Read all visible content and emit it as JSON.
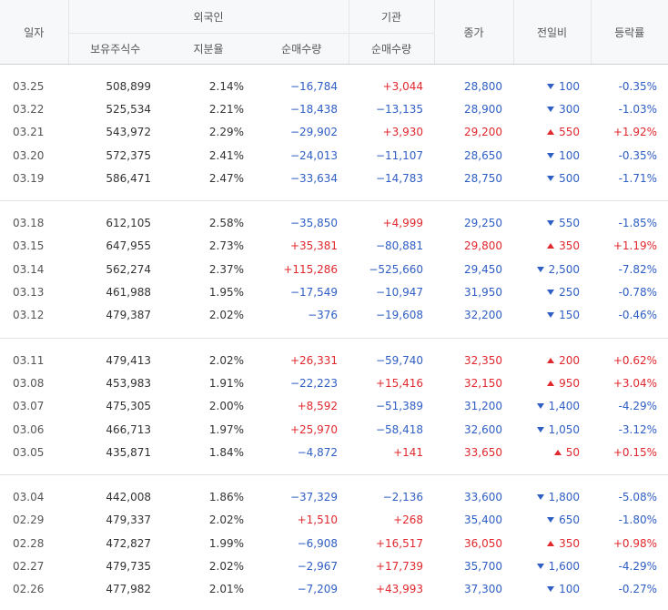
{
  "header": {
    "date": "일자",
    "foreign": "외국인",
    "institution": "기관",
    "close": "종가",
    "change": "전일비",
    "rate": "등락률",
    "holdings": "보유주식수",
    "ratio": "지분율",
    "foreign_net": "순매수량",
    "inst_net": "순매수량"
  },
  "colors": {
    "up": "#e0282e",
    "down": "#2f5ec4"
  },
  "groups": [
    [
      {
        "date": "03.25",
        "holdings": "508,899",
        "ratio": "2.14%",
        "foreign_net": "−16,784",
        "inst_net": "+3,044",
        "close": "28,800",
        "dir": "down",
        "change": "100",
        "rate": "-0.35%"
      },
      {
        "date": "03.22",
        "holdings": "525,534",
        "ratio": "2.21%",
        "foreign_net": "−18,438",
        "inst_net": "−13,135",
        "close": "28,900",
        "dir": "down",
        "change": "300",
        "rate": "-1.03%"
      },
      {
        "date": "03.21",
        "holdings": "543,972",
        "ratio": "2.29%",
        "foreign_net": "−29,902",
        "inst_net": "+3,930",
        "close": "29,200",
        "dir": "up",
        "change": "550",
        "rate": "+1.92%"
      },
      {
        "date": "03.20",
        "holdings": "572,375",
        "ratio": "2.41%",
        "foreign_net": "−24,013",
        "inst_net": "−11,107",
        "close": "28,650",
        "dir": "down",
        "change": "100",
        "rate": "-0.35%"
      },
      {
        "date": "03.19",
        "holdings": "586,471",
        "ratio": "2.47%",
        "foreign_net": "−33,634",
        "inst_net": "−14,783",
        "close": "28,750",
        "dir": "down",
        "change": "500",
        "rate": "-1.71%"
      }
    ],
    [
      {
        "date": "03.18",
        "holdings": "612,105",
        "ratio": "2.58%",
        "foreign_net": "−35,850",
        "inst_net": "+4,999",
        "close": "29,250",
        "dir": "down",
        "change": "550",
        "rate": "-1.85%"
      },
      {
        "date": "03.15",
        "holdings": "647,955",
        "ratio": "2.73%",
        "foreign_net": "+35,381",
        "inst_net": "−80,881",
        "close": "29,800",
        "dir": "up",
        "change": "350",
        "rate": "+1.19%"
      },
      {
        "date": "03.14",
        "holdings": "562,274",
        "ratio": "2.37%",
        "foreign_net": "+115,286",
        "inst_net": "−525,660",
        "close": "29,450",
        "dir": "down",
        "change": "2,500",
        "rate": "-7.82%"
      },
      {
        "date": "03.13",
        "holdings": "461,988",
        "ratio": "1.95%",
        "foreign_net": "−17,549",
        "inst_net": "−10,947",
        "close": "31,950",
        "dir": "down",
        "change": "250",
        "rate": "-0.78%"
      },
      {
        "date": "03.12",
        "holdings": "479,387",
        "ratio": "2.02%",
        "foreign_net": "−376",
        "inst_net": "−19,608",
        "close": "32,200",
        "dir": "down",
        "change": "150",
        "rate": "-0.46%"
      }
    ],
    [
      {
        "date": "03.11",
        "holdings": "479,413",
        "ratio": "2.02%",
        "foreign_net": "+26,331",
        "inst_net": "−59,740",
        "close": "32,350",
        "dir": "up",
        "change": "200",
        "rate": "+0.62%"
      },
      {
        "date": "03.08",
        "holdings": "453,983",
        "ratio": "1.91%",
        "foreign_net": "−22,223",
        "inst_net": "+15,416",
        "close": "32,150",
        "dir": "up",
        "change": "950",
        "rate": "+3.04%"
      },
      {
        "date": "03.07",
        "holdings": "475,305",
        "ratio": "2.00%",
        "foreign_net": "+8,592",
        "inst_net": "−51,389",
        "close": "31,200",
        "dir": "down",
        "change": "1,400",
        "rate": "-4.29%"
      },
      {
        "date": "03.06",
        "holdings": "466,713",
        "ratio": "1.97%",
        "foreign_net": "+25,970",
        "inst_net": "−58,418",
        "close": "32,600",
        "dir": "down",
        "change": "1,050",
        "rate": "-3.12%"
      },
      {
        "date": "03.05",
        "holdings": "435,871",
        "ratio": "1.84%",
        "foreign_net": "−4,872",
        "inst_net": "+141",
        "close": "33,650",
        "dir": "up",
        "change": "50",
        "rate": "+0.15%"
      }
    ],
    [
      {
        "date": "03.04",
        "holdings": "442,008",
        "ratio": "1.86%",
        "foreign_net": "−37,329",
        "inst_net": "−2,136",
        "close": "33,600",
        "dir": "down",
        "change": "1,800",
        "rate": "-5.08%"
      },
      {
        "date": "02.29",
        "holdings": "479,337",
        "ratio": "2.02%",
        "foreign_net": "+1,510",
        "inst_net": "+268",
        "close": "35,400",
        "dir": "down",
        "change": "650",
        "rate": "-1.80%"
      },
      {
        "date": "02.28",
        "holdings": "472,827",
        "ratio": "1.99%",
        "foreign_net": "−6,908",
        "inst_net": "+16,517",
        "close": "36,050",
        "dir": "up",
        "change": "350",
        "rate": "+0.98%"
      },
      {
        "date": "02.27",
        "holdings": "479,735",
        "ratio": "2.02%",
        "foreign_net": "−2,967",
        "inst_net": "+17,739",
        "close": "35,700",
        "dir": "down",
        "change": "1,600",
        "rate": "-4.29%"
      },
      {
        "date": "02.26",
        "holdings": "477,982",
        "ratio": "2.01%",
        "foreign_net": "−7,209",
        "inst_net": "+43,993",
        "close": "37,300",
        "dir": "down",
        "change": "100",
        "rate": "-0.27%"
      }
    ]
  ]
}
